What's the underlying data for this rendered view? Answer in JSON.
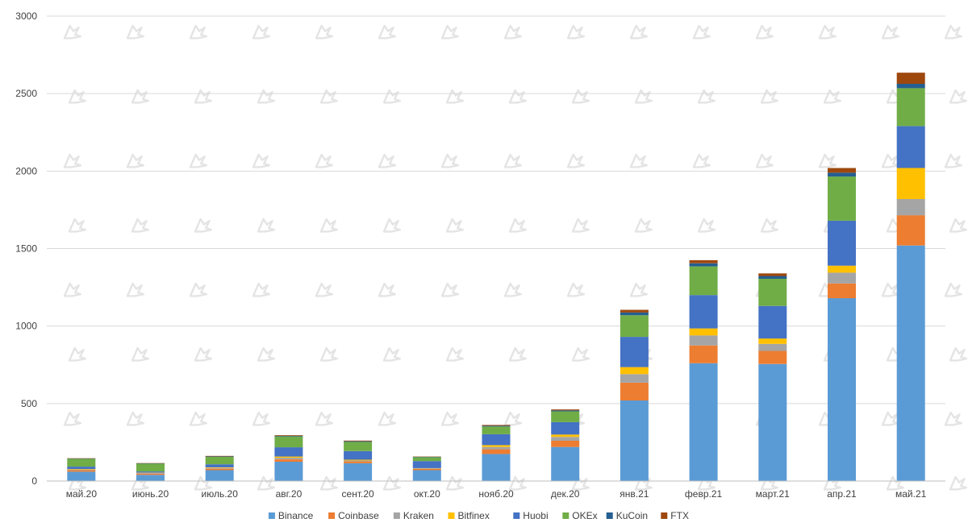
{
  "chart_data": {
    "type": "bar",
    "stacked": true,
    "categories": [
      "май.20",
      "июнь.20",
      "июль.20",
      "авг.20",
      "сент.20",
      "окт.20",
      "нояб.20",
      "дек.20",
      "янв.21",
      "февр.21",
      "март.21",
      "апр.21",
      "май.21"
    ],
    "ylim": [
      0,
      3000
    ],
    "yticks": [
      "0",
      "500",
      "1000",
      "1500",
      "2000",
      "2500",
      "3000"
    ],
    "grid": true,
    "legend_position": "bottom",
    "series": [
      {
        "name": "Binance",
        "color": "#5b9bd5",
        "values": [
          60,
          40,
          70,
          125,
          115,
          70,
          175,
          220,
          520,
          760,
          755,
          1180,
          1520
        ]
      },
      {
        "name": "Coinbase",
        "color": "#ed7d31",
        "values": [
          10,
          8,
          10,
          15,
          12,
          8,
          30,
          40,
          115,
          115,
          85,
          95,
          195
        ]
      },
      {
        "name": "Kraken",
        "color": "#a5a5a5",
        "values": [
          5,
          4,
          5,
          10,
          6,
          4,
          15,
          25,
          55,
          65,
          45,
          70,
          105
        ]
      },
      {
        "name": "Bitfinex",
        "color": "#ffc000",
        "values": [
          3,
          2,
          3,
          8,
          5,
          2,
          12,
          15,
          45,
          45,
          35,
          45,
          200
        ]
      },
      {
        "name": "Huobi",
        "color": "#4472c4",
        "values": [
          15,
          8,
          20,
          60,
          55,
          45,
          70,
          80,
          195,
          215,
          210,
          290,
          270
        ]
      },
      {
        "name": "OKEx",
        "color": "#70ad47",
        "values": [
          50,
          50,
          48,
          70,
          60,
          25,
          50,
          70,
          140,
          185,
          175,
          285,
          245
        ]
      },
      {
        "name": "KuCoin",
        "color": "#255e91",
        "values": [
          2,
          2,
          3,
          4,
          4,
          2,
          5,
          6,
          18,
          20,
          18,
          25,
          28
        ]
      },
      {
        "name": "FTX",
        "color": "#9e480e",
        "values": [
          2,
          2,
          3,
          4,
          4,
          2,
          5,
          6,
          17,
          20,
          17,
          30,
          72
        ]
      }
    ]
  }
}
